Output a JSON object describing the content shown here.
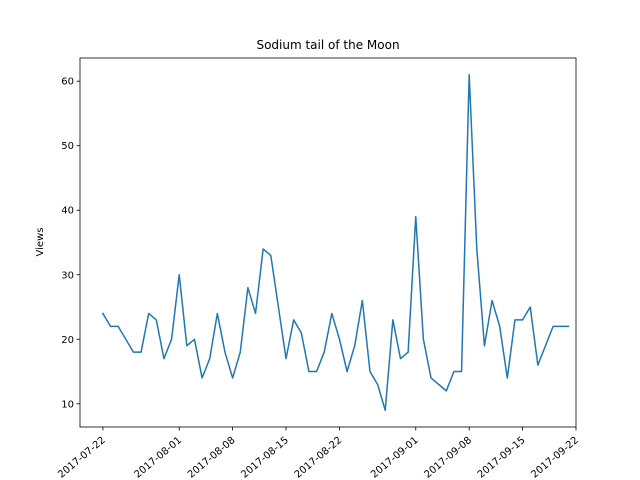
{
  "chart_data": {
    "type": "line",
    "title": "Sodium tail of the Moon",
    "xlabel": "",
    "ylabel": "Views",
    "x_tick_labels": [
      "2017-07-22",
      "2017-08-01",
      "2017-08-08",
      "2017-08-15",
      "2017-08-22",
      "2017-09-01",
      "2017-09-08",
      "2017-09-15",
      "2017-09-22"
    ],
    "y_ticks": [
      10,
      20,
      30,
      40,
      50,
      60
    ],
    "ylim": [
      6.4,
      63.6
    ],
    "xlim": [
      "2017-07-19",
      "2017-09-22"
    ],
    "grid": false,
    "line_color": "#1f77b4",
    "series": [
      {
        "x": [
          "2017-07-22",
          "2017-07-23",
          "2017-07-24",
          "2017-07-25",
          "2017-07-26",
          "2017-07-27",
          "2017-07-28",
          "2017-07-29",
          "2017-07-30",
          "2017-07-31",
          "2017-08-01",
          "2017-08-02",
          "2017-08-03",
          "2017-08-04",
          "2017-08-05",
          "2017-08-06",
          "2017-08-07",
          "2017-08-08",
          "2017-08-09",
          "2017-08-10",
          "2017-08-11",
          "2017-08-12",
          "2017-08-13",
          "2017-08-14",
          "2017-08-15",
          "2017-08-16",
          "2017-08-17",
          "2017-08-18",
          "2017-08-19",
          "2017-08-20",
          "2017-08-21",
          "2017-08-22",
          "2017-08-23",
          "2017-08-24",
          "2017-08-25",
          "2017-08-26",
          "2017-08-27",
          "2017-08-28",
          "2017-08-29",
          "2017-08-30",
          "2017-08-31",
          "2017-09-01",
          "2017-09-02",
          "2017-09-03",
          "2017-09-05",
          "2017-09-06",
          "2017-09-07",
          "2017-09-08",
          "2017-09-09",
          "2017-09-10",
          "2017-09-11",
          "2017-09-12",
          "2017-09-13",
          "2017-09-14",
          "2017-09-15",
          "2017-09-16",
          "2017-09-17",
          "2017-09-18",
          "2017-09-19",
          "2017-09-20",
          "2017-09-21"
        ],
        "values": [
          24,
          22,
          22,
          20,
          18,
          18,
          24,
          23,
          17,
          20,
          30,
          19,
          20,
          14,
          17,
          24,
          18,
          14,
          18,
          28,
          24,
          34,
          33,
          25,
          17,
          23,
          21,
          15,
          15,
          18,
          24,
          20,
          15,
          19,
          26,
          15,
          13,
          9,
          23,
          17,
          18,
          39,
          20,
          14,
          12,
          15,
          15,
          61,
          34,
          19,
          26,
          22,
          14,
          23,
          23,
          25,
          16,
          19,
          22,
          22,
          22
        ]
      }
    ]
  }
}
